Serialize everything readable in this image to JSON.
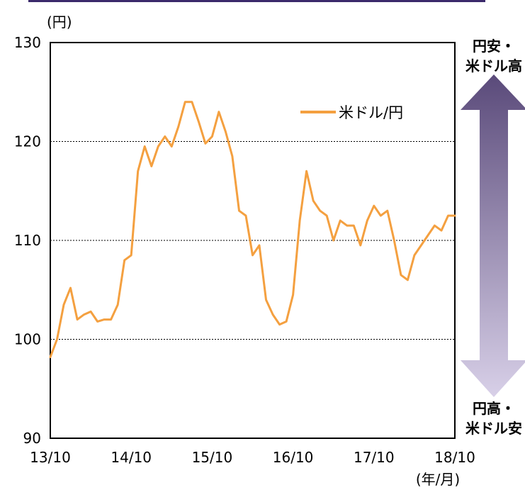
{
  "chart_data": {
    "type": "line",
    "y_unit": "(円)",
    "x_unit": "(年/月)",
    "ylim": [
      90,
      130
    ],
    "yticks": [
      "90",
      "100",
      "110",
      "120",
      "130"
    ],
    "xticks": [
      "13/10",
      "14/10",
      "15/10",
      "16/10",
      "17/10",
      "18/10"
    ],
    "grid": "horizontal dotted at 100, 110, 120",
    "legend_position": "top-right",
    "series": [
      {
        "name": "米ドル/円",
        "color": "#f4a040",
        "points": [
          [
            "2013-10",
            98.2
          ],
          [
            "2013-11",
            100.0
          ],
          [
            "2013-12",
            103.5
          ],
          [
            "2014-01",
            105.2
          ],
          [
            "2014-02",
            102.0
          ],
          [
            "2014-03",
            102.5
          ],
          [
            "2014-04",
            102.8
          ],
          [
            "2014-05",
            101.8
          ],
          [
            "2014-06",
            102.0
          ],
          [
            "2014-07",
            102.0
          ],
          [
            "2014-08",
            103.5
          ],
          [
            "2014-09",
            108.0
          ],
          [
            "2014-10",
            108.5
          ],
          [
            "2014-11",
            117.0
          ],
          [
            "2014-12",
            119.5
          ],
          [
            "2015-01",
            117.5
          ],
          [
            "2015-02",
            119.5
          ],
          [
            "2015-03",
            120.5
          ],
          [
            "2015-04",
            119.5
          ],
          [
            "2015-05",
            121.5
          ],
          [
            "2015-06",
            124.0
          ],
          [
            "2015-07",
            124.0
          ],
          [
            "2015-08",
            122.0
          ],
          [
            "2015-09",
            119.8
          ],
          [
            "2015-10",
            120.5
          ],
          [
            "2015-11",
            123.0
          ],
          [
            "2015-12",
            121.0
          ],
          [
            "2016-01",
            118.5
          ],
          [
            "2016-02",
            113.0
          ],
          [
            "2016-03",
            112.5
          ],
          [
            "2016-04",
            108.5
          ],
          [
            "2016-05",
            109.5
          ],
          [
            "2016-06",
            104.0
          ],
          [
            "2016-07",
            102.5
          ],
          [
            "2016-08",
            101.5
          ],
          [
            "2016-09",
            101.8
          ],
          [
            "2016-10",
            104.5
          ],
          [
            "2016-11",
            112.0
          ],
          [
            "2016-12",
            117.0
          ],
          [
            "2017-01",
            114.0
          ],
          [
            "2017-02",
            113.0
          ],
          [
            "2017-03",
            112.5
          ],
          [
            "2017-04",
            110.0
          ],
          [
            "2017-05",
            112.0
          ],
          [
            "2017-06",
            111.5
          ],
          [
            "2017-07",
            111.5
          ],
          [
            "2017-08",
            109.5
          ],
          [
            "2017-09",
            112.0
          ],
          [
            "2017-10",
            113.5
          ],
          [
            "2017-11",
            112.5
          ],
          [
            "2017-12",
            113.0
          ],
          [
            "2018-01",
            110.0
          ],
          [
            "2018-02",
            106.5
          ],
          [
            "2018-03",
            106.0
          ],
          [
            "2018-04",
            108.5
          ],
          [
            "2018-05",
            109.5
          ],
          [
            "2018-06",
            110.5
          ],
          [
            "2018-07",
            111.5
          ],
          [
            "2018-08",
            111.0
          ],
          [
            "2018-09",
            112.5
          ],
          [
            "2018-10",
            112.5
          ]
        ]
      }
    ]
  },
  "annotations": {
    "top_label_line1": "円安・",
    "top_label_line2": "米ドル高",
    "bottom_label_line1": "円高・",
    "bottom_label_line2": "米ドル安",
    "arrow_color_top": "#5a4a7a",
    "arrow_color_bottom": "#d8d0e8"
  }
}
